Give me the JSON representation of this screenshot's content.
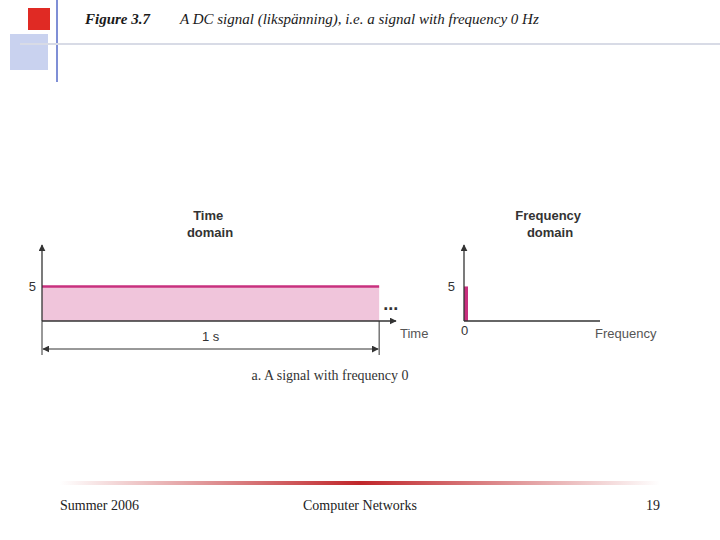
{
  "slide": {
    "figure_number": "Figure 3.7",
    "title": "A DC signal (likspänning), i.e. a signal with frequency 0 Hz",
    "caption": "a. A signal with frequency 0",
    "footer": [
      "Summer 2006",
      "Computer Networks",
      "19"
    ]
  },
  "chart_data": [
    {
      "type": "area",
      "title": "Time domain",
      "x_label": "Time",
      "x": [
        0,
        1
      ],
      "values": [
        5,
        5
      ],
      "color": "#c8307e",
      "xlim": [
        0,
        1.05
      ],
      "xticks": [
        0,
        1
      ],
      "ylim": [
        0,
        11
      ],
      "yticks": [
        5
      ],
      "tick_labels": "y",
      "annotations": [
        "...",
        "1 s"
      ]
    },
    {
      "type": "bar",
      "title": "Frequency domain",
      "x_label": "Frequency",
      "x": [
        0
      ],
      "values": [
        5
      ],
      "color": "#c8307e",
      "xlim": [
        0,
        10
      ],
      "xticks": [
        0
      ],
      "ylim": [
        0,
        11
      ],
      "yticks": [
        5
      ]
    }
  ]
}
